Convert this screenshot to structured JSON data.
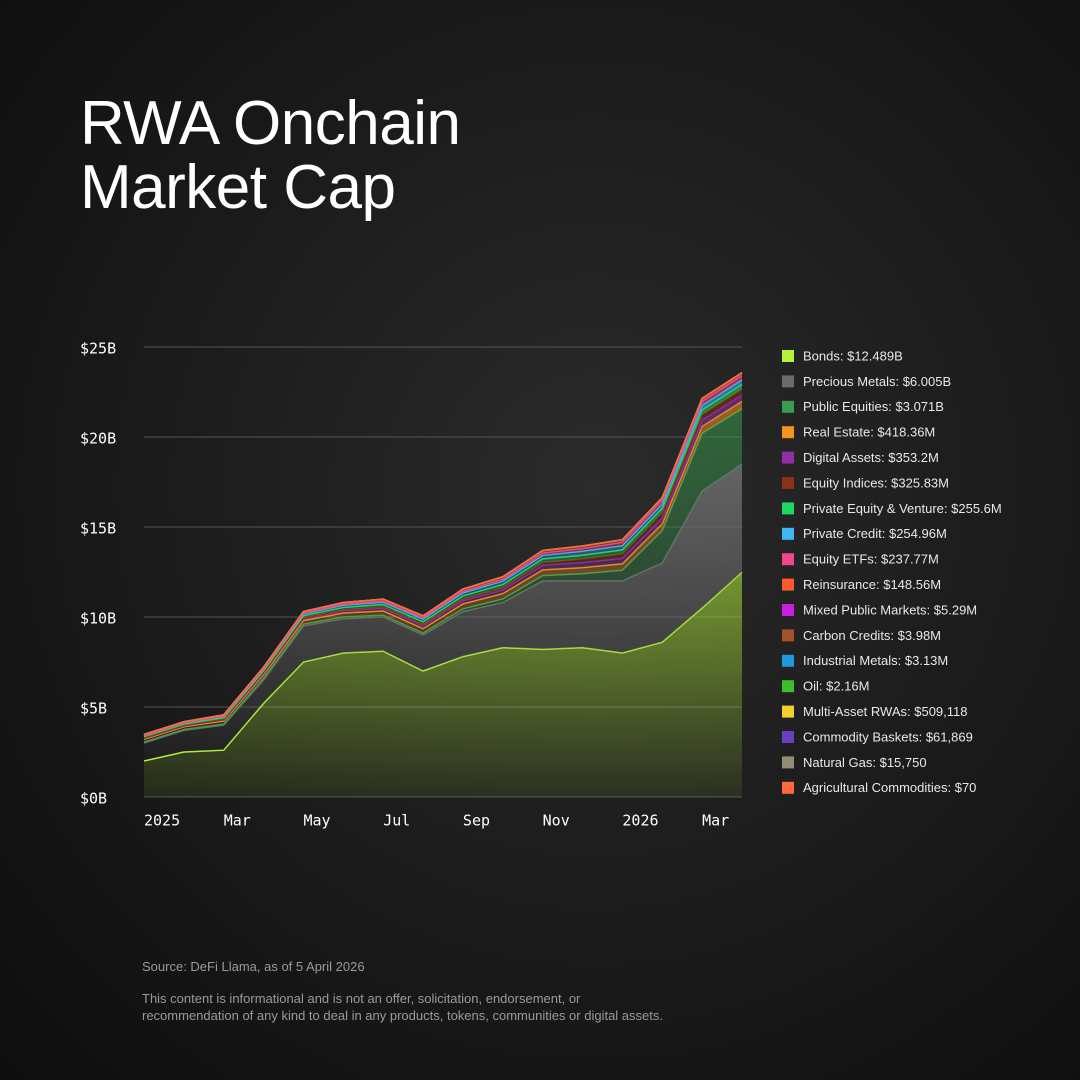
{
  "chart_data": {
    "type": "stacked-area",
    "title": "RWA Onchain Market Cap",
    "source": "Source: DeFi Llama, as of 5 April 2026",
    "disclaimer": [
      "This content is informational and is not an offer, solicitation, endorsement, or",
      "recommendation of any kind to deal in any products, tokens, communities or digital assets."
    ],
    "x": [
      "2025-01",
      "2025-02",
      "2025-03",
      "2025-04",
      "2025-05",
      "2025-06",
      "2025-07",
      "2025-08",
      "2025-09",
      "2025-10",
      "2025-11",
      "2025-12",
      "2026-01",
      "2026-02",
      "2026-03",
      "2026-04"
    ],
    "xlim": [
      "2025-01",
      "2026-04"
    ],
    "xticks": [
      {
        "value": "2025-01",
        "label": "2025"
      },
      {
        "value": "2025-03",
        "label": "Mar"
      },
      {
        "value": "2025-05",
        "label": "May"
      },
      {
        "value": "2025-07",
        "label": "Jul"
      },
      {
        "value": "2025-09",
        "label": "Sep"
      },
      {
        "value": "2025-11",
        "label": "Nov"
      },
      {
        "value": "2026-01",
        "label": "2026"
      },
      {
        "value": "2026-03",
        "label": "Mar"
      }
    ],
    "ylim": [
      0,
      25
    ],
    "yticks": [
      {
        "value": 0,
        "label": "$0B"
      },
      {
        "value": 5,
        "label": "$5B"
      },
      {
        "value": 10,
        "label": "$10B"
      },
      {
        "value": 15,
        "label": "$15B"
      },
      {
        "value": 20,
        "label": "$20B"
      },
      {
        "value": 25,
        "label": "$25B"
      }
    ],
    "grid": true,
    "series": [
      {
        "name": "Bonds: $12.489B",
        "color": "#b5f23a",
        "values": [
          2.0,
          2.5,
          2.6,
          5.2,
          7.5,
          8.0,
          8.1,
          7.0,
          7.8,
          8.3,
          8.2,
          8.3,
          8.0,
          8.6,
          10.5,
          12.489
        ]
      },
      {
        "name": "Precious Metals: $6.005B",
        "color": "#6b6b6b",
        "values": [
          1.0,
          1.2,
          1.4,
          1.3,
          2.0,
          1.9,
          1.9,
          2.0,
          2.5,
          2.5,
          3.8,
          3.7,
          4.0,
          4.4,
          6.5,
          6.005
        ]
      },
      {
        "name": "Public Equities: $3.071B",
        "color": "#3a9c4e",
        "values": [
          0.05,
          0.05,
          0.05,
          0.1,
          0.1,
          0.1,
          0.1,
          0.1,
          0.15,
          0.2,
          0.3,
          0.4,
          0.6,
          1.8,
          3.2,
          3.071
        ]
      },
      {
        "name": "Real Estate: $418.36M",
        "color": "#f7931e",
        "values": [
          0.15,
          0.15,
          0.17,
          0.2,
          0.2,
          0.22,
          0.24,
          0.25,
          0.28,
          0.3,
          0.32,
          0.34,
          0.36,
          0.38,
          0.4,
          0.418
        ]
      },
      {
        "name": "Digital Assets: $353.2M",
        "color": "#8e2fa8",
        "values": [
          0.05,
          0.05,
          0.06,
          0.08,
          0.1,
          0.12,
          0.14,
          0.15,
          0.18,
          0.2,
          0.25,
          0.28,
          0.3,
          0.32,
          0.34,
          0.353
        ]
      },
      {
        "name": "Equity Indices: $325.83M",
        "color": "#8b3213",
        "values": [
          0.02,
          0.02,
          0.03,
          0.04,
          0.05,
          0.06,
          0.07,
          0.08,
          0.1,
          0.12,
          0.15,
          0.2,
          0.25,
          0.3,
          0.32,
          0.326
        ]
      },
      {
        "name": "Private Equity & Venture: $255.6M",
        "color": "#1ed760",
        "values": [
          0.08,
          0.08,
          0.09,
          0.1,
          0.12,
          0.13,
          0.14,
          0.15,
          0.16,
          0.18,
          0.2,
          0.21,
          0.22,
          0.24,
          0.25,
          0.256
        ]
      },
      {
        "name": "Private Credit: $254.96M",
        "color": "#3db8f5",
        "values": [
          0.05,
          0.06,
          0.07,
          0.08,
          0.1,
          0.12,
          0.13,
          0.15,
          0.17,
          0.19,
          0.2,
          0.22,
          0.23,
          0.24,
          0.25,
          0.255
        ]
      },
      {
        "name": "Equity ETFs: $237.77M",
        "color": "#f0468c",
        "values": [
          0.01,
          0.01,
          0.02,
          0.03,
          0.04,
          0.05,
          0.06,
          0.07,
          0.09,
          0.11,
          0.13,
          0.15,
          0.18,
          0.2,
          0.22,
          0.238
        ]
      },
      {
        "name": "Reinsurance: $148.56M",
        "color": "#ff5a2a",
        "values": [
          0.05,
          0.05,
          0.06,
          0.07,
          0.08,
          0.09,
          0.1,
          0.1,
          0.11,
          0.12,
          0.13,
          0.13,
          0.14,
          0.14,
          0.15,
          0.149
        ]
      },
      {
        "name": "Mixed Public Markets: $5.29M",
        "color": "#c81ee0",
        "values": [
          0.004,
          0.004,
          0.004,
          0.004,
          0.004,
          0.005,
          0.005,
          0.005,
          0.005,
          0.005,
          0.005,
          0.005,
          0.005,
          0.005,
          0.005,
          0.00529
        ]
      },
      {
        "name": "Carbon Credits: $3.98M",
        "color": "#a0522d",
        "values": [
          0.004,
          0.004,
          0.004,
          0.004,
          0.004,
          0.004,
          0.004,
          0.004,
          0.004,
          0.004,
          0.004,
          0.004,
          0.004,
          0.004,
          0.004,
          0.00398
        ]
      },
      {
        "name": "Industrial Metals: $3.13M",
        "color": "#1e9be0",
        "values": [
          0.001,
          0.001,
          0.001,
          0.002,
          0.002,
          0.002,
          0.002,
          0.002,
          0.003,
          0.003,
          0.003,
          0.003,
          0.003,
          0.003,
          0.003,
          0.00313
        ]
      },
      {
        "name": "Oil: $2.16M",
        "color": "#3cbf2e",
        "values": [
          0.002,
          0.002,
          0.002,
          0.002,
          0.002,
          0.002,
          0.002,
          0.002,
          0.002,
          0.002,
          0.002,
          0.002,
          0.002,
          0.002,
          0.002,
          0.00216
        ]
      },
      {
        "name": "Multi-Asset RWAs: $509,118",
        "color": "#f5cf2e",
        "values": [
          0.0005,
          0.0005,
          0.0005,
          0.0005,
          0.0005,
          0.0005,
          0.0005,
          0.0005,
          0.0005,
          0.0005,
          0.0005,
          0.0005,
          0.0005,
          0.0005,
          0.0005,
          0.000509118
        ]
      },
      {
        "name": "Commodity Baskets: $61,869",
        "color": "#6a3fc0",
        "values": [
          6e-05,
          6e-05,
          6e-05,
          6e-05,
          6e-05,
          6e-05,
          6e-05,
          6e-05,
          6e-05,
          6e-05,
          6e-05,
          6e-05,
          6e-05,
          6e-05,
          6e-05,
          6.1869e-05
        ]
      },
      {
        "name": "Natural Gas: $15,750",
        "color": "#948a78",
        "values": [
          2e-05,
          2e-05,
          2e-05,
          2e-05,
          2e-05,
          2e-05,
          2e-05,
          2e-05,
          2e-05,
          2e-05,
          2e-05,
          2e-05,
          2e-05,
          2e-05,
          2e-05,
          1.575e-05
        ]
      },
      {
        "name": "Agricultural Commodities: $70",
        "color": "#ff6a3a",
        "values": [
          7e-08,
          7e-08,
          7e-08,
          7e-08,
          7e-08,
          7e-08,
          7e-08,
          7e-08,
          7e-08,
          7e-08,
          7e-08,
          7e-08,
          7e-08,
          7e-08,
          7e-08,
          7e-08
        ]
      }
    ]
  }
}
